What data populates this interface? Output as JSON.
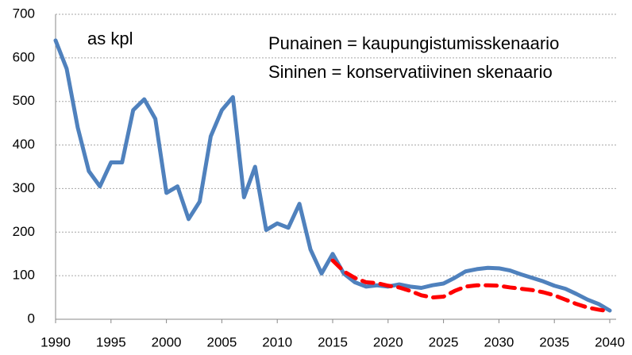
{
  "chart_data": {
    "type": "line",
    "annotations": [
      "as kpl",
      "Punainen = kaupungistumisskenaario",
      "Sininen = konservatiivinen skenaario"
    ],
    "annotation_colors": [
      "#000000",
      "#ff0000",
      "#4f81bd"
    ],
    "series": [
      {
        "name": "konservatiivinen skenaario",
        "color": "#4f81bd",
        "dashed": false,
        "x": [
          1990,
          1991,
          1992,
          1993,
          1994,
          1995,
          1996,
          1997,
          1998,
          1999,
          2000,
          2001,
          2002,
          2003,
          2004,
          2005,
          2006,
          2007,
          2008,
          2009,
          2010,
          2011,
          2012,
          2013,
          2014,
          2015,
          2016,
          2017,
          2018,
          2019,
          2020,
          2021,
          2022,
          2023,
          2024,
          2025,
          2026,
          2027,
          2028,
          2029,
          2030,
          2031,
          2032,
          2033,
          2034,
          2035,
          2036,
          2037,
          2038,
          2039,
          2040
        ],
        "values": [
          640,
          575,
          440,
          340,
          305,
          360,
          360,
          480,
          505,
          460,
          290,
          305,
          230,
          270,
          420,
          480,
          510,
          280,
          350,
          205,
          220,
          210,
          265,
          160,
          105,
          150,
          105,
          85,
          75,
          78,
          75,
          80,
          75,
          72,
          78,
          82,
          95,
          110,
          115,
          118,
          117,
          112,
          103,
          95,
          87,
          77,
          70,
          58,
          45,
          35,
          20
        ]
      },
      {
        "name": "kaupungistumisskenaario",
        "color": "#ff0000",
        "dashed": true,
        "x": [
          2015,
          2016,
          2017,
          2018,
          2019,
          2020,
          2021,
          2022,
          2023,
          2024,
          2025,
          2026,
          2027,
          2028,
          2029,
          2030,
          2031,
          2032,
          2033,
          2034,
          2035,
          2036,
          2037,
          2038,
          2039,
          2040
        ],
        "values": [
          135,
          110,
          95,
          85,
          83,
          77,
          73,
          65,
          55,
          50,
          52,
          65,
          75,
          78,
          78,
          77,
          73,
          70,
          67,
          62,
          55,
          45,
          35,
          27,
          22,
          18
        ]
      }
    ],
    "xlim": [
      1990,
      2040
    ],
    "xticks": [
      1990,
      1995,
      2000,
      2005,
      2010,
      2015,
      2020,
      2025,
      2030,
      2035,
      2040
    ],
    "ylim": [
      0,
      700
    ],
    "yticks": [
      0,
      100,
      200,
      300,
      400,
      500,
      600,
      700
    ],
    "grid": true
  }
}
